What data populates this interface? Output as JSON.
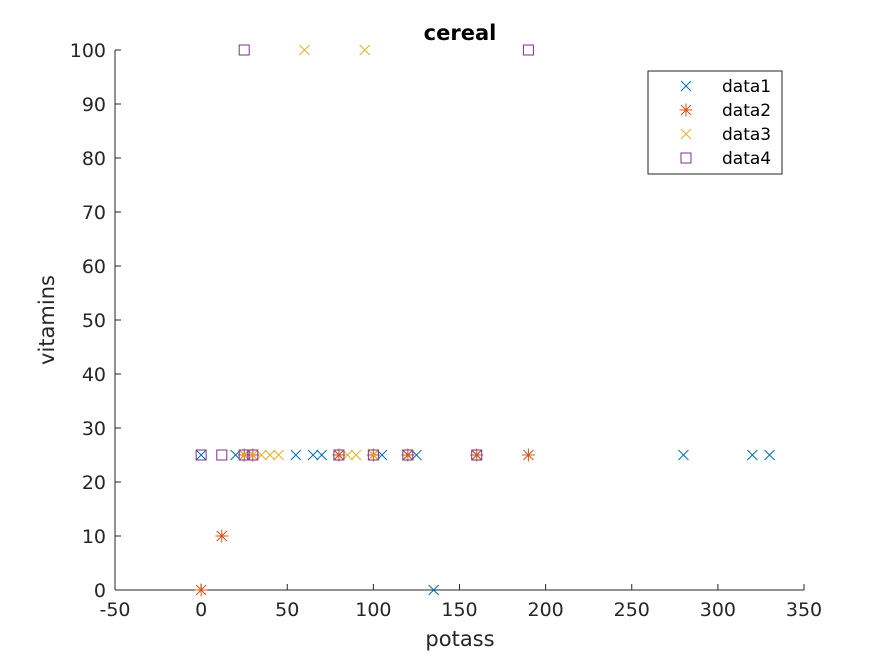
{
  "chart_data": {
    "type": "scatter",
    "title": "cereal",
    "xlabel": "potass",
    "ylabel": "vitamins",
    "xlim": [
      -50,
      350
    ],
    "ylim": [
      0,
      100
    ],
    "xticks": [
      -50,
      0,
      50,
      100,
      150,
      200,
      250,
      300,
      350
    ],
    "yticks": [
      0,
      10,
      20,
      30,
      40,
      50,
      60,
      70,
      80,
      90,
      100
    ],
    "legend_position": "top-right",
    "grid": false,
    "series": [
      {
        "name": "data1",
        "marker": "x",
        "color": "#0072BD",
        "points": [
          [
            0,
            25
          ],
          [
            20,
            25
          ],
          [
            25,
            25
          ],
          [
            55,
            25
          ],
          [
            65,
            25
          ],
          [
            70,
            25
          ],
          [
            80,
            25
          ],
          [
            100,
            25
          ],
          [
            105,
            25
          ],
          [
            120,
            25
          ],
          [
            125,
            25
          ],
          [
            135,
            0
          ],
          [
            160,
            25
          ],
          [
            280,
            25
          ],
          [
            320,
            25
          ],
          [
            330,
            25
          ]
        ]
      },
      {
        "name": "data2",
        "marker": "asterisk",
        "color": "#D95319",
        "points": [
          [
            0,
            0
          ],
          [
            12,
            10
          ],
          [
            25,
            25
          ],
          [
            30,
            25
          ],
          [
            80,
            25
          ],
          [
            100,
            25
          ],
          [
            120,
            25
          ],
          [
            160,
            25
          ],
          [
            190,
            25
          ]
        ]
      },
      {
        "name": "data3",
        "marker": "x",
        "color": "#EDB120",
        "points": [
          [
            25,
            25
          ],
          [
            30,
            25
          ],
          [
            35,
            25
          ],
          [
            40,
            25
          ],
          [
            45,
            25
          ],
          [
            60,
            100
          ],
          [
            85,
            25
          ],
          [
            90,
            25
          ],
          [
            95,
            100
          ],
          [
            100,
            25
          ]
        ]
      },
      {
        "name": "data4",
        "marker": "square",
        "color": "#7E2F8E",
        "points": [
          [
            0,
            25
          ],
          [
            12,
            25
          ],
          [
            25,
            100
          ],
          [
            25,
            25
          ],
          [
            30,
            25
          ],
          [
            80,
            25
          ],
          [
            100,
            25
          ],
          [
            120,
            25
          ],
          [
            160,
            25
          ],
          [
            190,
            100
          ]
        ]
      }
    ]
  }
}
